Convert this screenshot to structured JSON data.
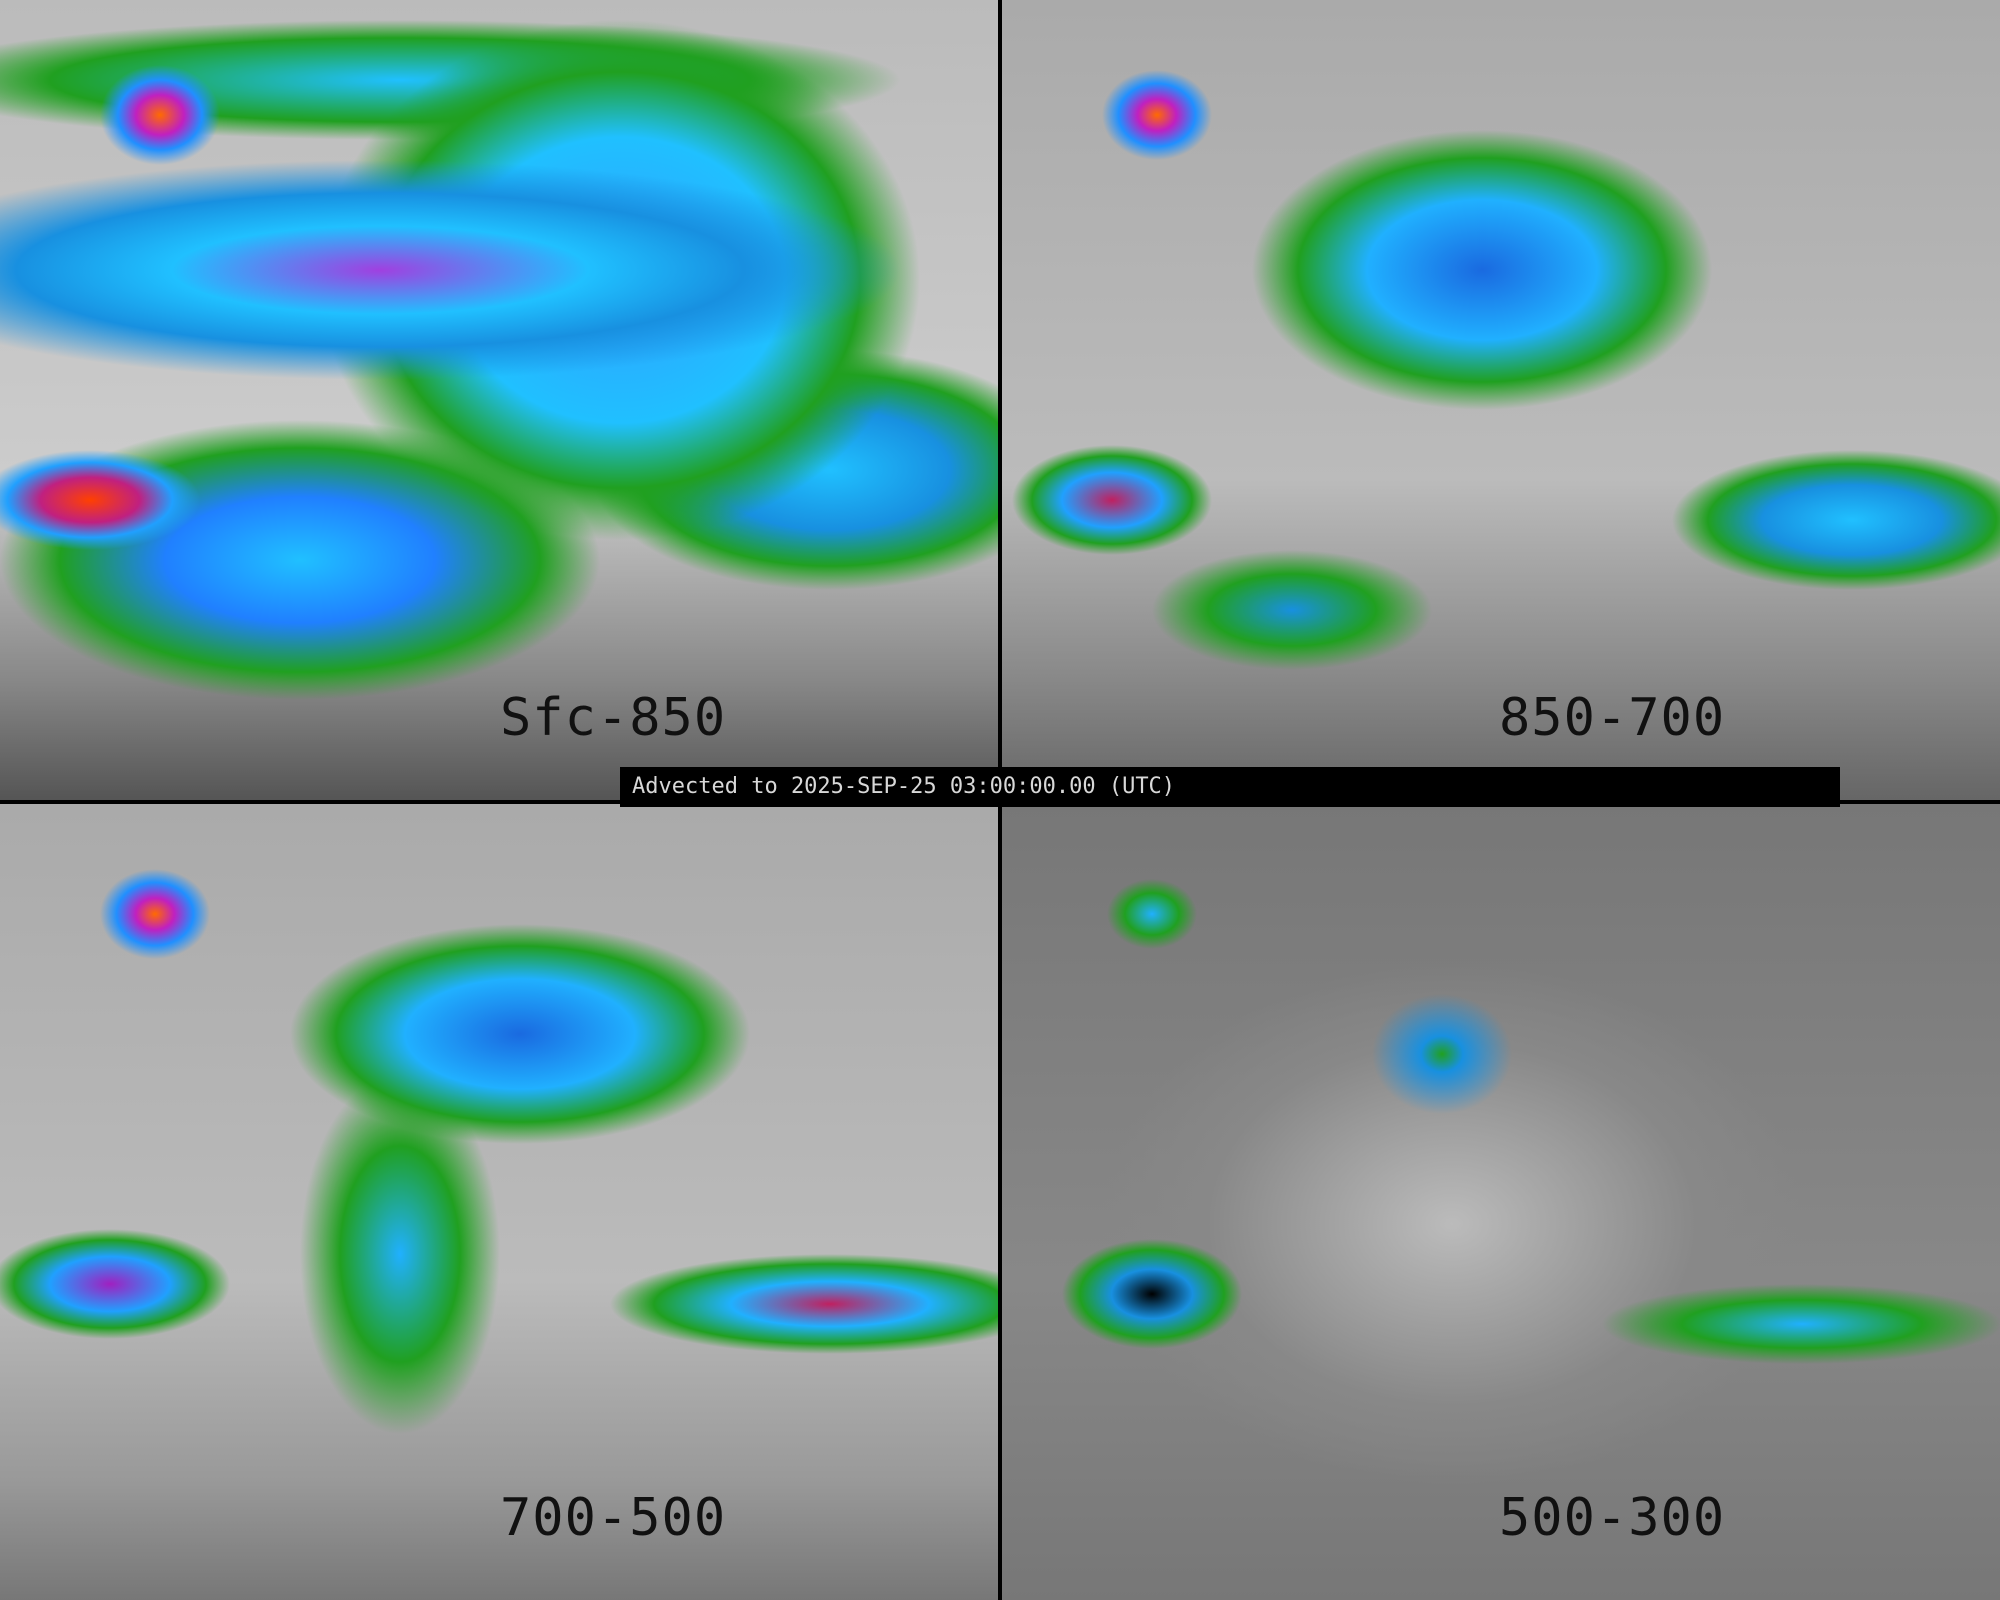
{
  "banner": {
    "text": "Advected to 2025-SEP-25 03:00:00.00 (UTC)"
  },
  "panels": [
    {
      "label": "Sfc-850"
    },
    {
      "label": "850-700"
    },
    {
      "label": "700-500"
    },
    {
      "label": "500-300"
    }
  ],
  "colors": {
    "background": "#000000",
    "green": "#20a020",
    "cyan": "#20c0ff",
    "blue": "#1890e0",
    "magenta": "#c020c0",
    "red-orange": "#ff4000"
  }
}
